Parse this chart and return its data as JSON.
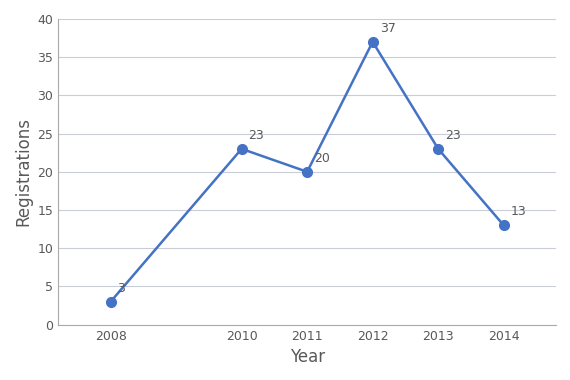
{
  "years": [
    2008,
    2010,
    2011,
    2012,
    2013,
    2014
  ],
  "values": [
    3,
    23,
    20,
    37,
    23,
    13
  ],
  "line_color": "#4472C4",
  "marker_color": "#4472C4",
  "marker_size": 7,
  "line_width": 1.8,
  "xlabel": "Year",
  "ylabel": "Registrations",
  "ylim": [
    0,
    40
  ],
  "yticks": [
    0,
    5,
    10,
    15,
    20,
    25,
    30,
    35,
    40
  ],
  "grid_color": "#C8CDD8",
  "background_color": "#FFFFFF",
  "plot_bg_color": "#FFFFFF",
  "label_color": "#595959",
  "label_fontsize": 9,
  "axis_label_fontsize": 12,
  "tick_fontsize": 9,
  "tick_color": "#595959",
  "spine_color": "#AAAAAA"
}
